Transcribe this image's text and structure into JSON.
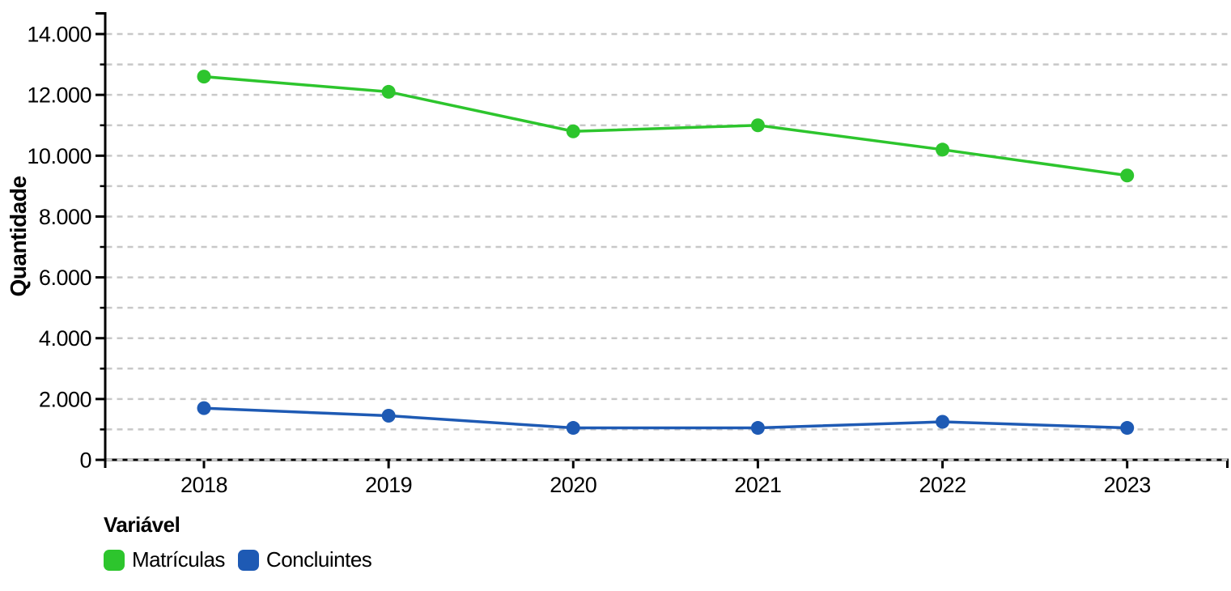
{
  "chart_data": {
    "type": "line",
    "title": "",
    "xlabel": "",
    "ylabel": "Quantidade",
    "legend_title": "Variável",
    "legend_position": "bottom-left",
    "grid": "horizontal-dashed",
    "x": [
      "2018",
      "2019",
      "2020",
      "2021",
      "2022",
      "2023"
    ],
    "series": [
      {
        "name": "Matrículas",
        "color": "#2dc52d",
        "values": [
          12600,
          12100,
          10800,
          11000,
          10200,
          9350
        ]
      },
      {
        "name": "Concluintes",
        "color": "#1e5ab4",
        "values": [
          1700,
          1450,
          1050,
          1050,
          1250,
          1050
        ]
      }
    ],
    "ylim": [
      0,
      14720
    ],
    "y_tick_step": 2000,
    "y_minor_step": 1000,
    "y_tick_labels": [
      "0",
      "2.000",
      "4.000",
      "6.000",
      "8.000",
      "10.000",
      "12.000",
      "14.000"
    ],
    "colors": {
      "axis": "#000000",
      "grid": "#c8c8c8",
      "text": "#000000",
      "background": "#ffffff"
    }
  }
}
